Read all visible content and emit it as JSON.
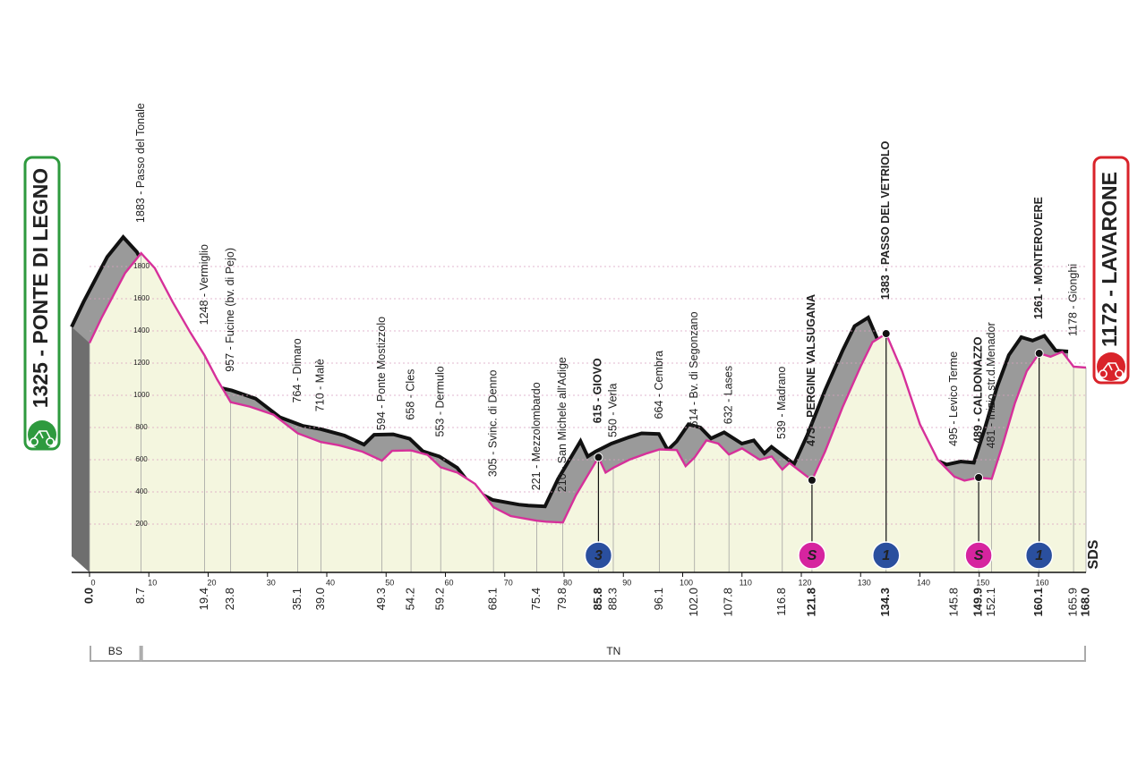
{
  "chart_data": {
    "type": "area",
    "start": "1325 - PONTE DI LEGNO",
    "finish": "1172 - LAVARONE",
    "logo": "SDS",
    "line_color": "#d6309a",
    "fill_color": "#f4f6df",
    "shadow_color": "#9a9a9a",
    "xlim": [
      0,
      168
    ],
    "ylim": [
      -100,
      1900
    ],
    "xticks": [
      0,
      10,
      20,
      30,
      40,
      50,
      60,
      70,
      80,
      90,
      100,
      110,
      120,
      130,
      140,
      150,
      160
    ],
    "yticks": [
      200,
      400,
      600,
      800,
      1000,
      1200,
      1400,
      1600,
      1800
    ],
    "x": [
      0,
      2,
      4,
      6,
      8.7,
      11,
      14,
      17,
      19.4,
      21.5,
      23.8,
      27,
      31,
      35.1,
      39.0,
      42,
      46,
      49.3,
      51,
      54.2,
      57,
      59.2,
      62,
      65,
      68.1,
      71,
      75.4,
      77,
      79.8,
      82,
      85.8,
      87,
      88.3,
      91,
      94,
      96.1,
      99,
      100.5,
      102.0,
      104,
      106,
      107.8,
      110,
      113,
      115,
      116.8,
      118,
      121.8,
      124,
      127,
      130,
      132,
      134.3,
      137,
      140,
      143,
      145.8,
      147.5,
      149.9,
      152.1,
      154,
      156,
      158,
      160.1,
      162,
      164,
      165.9,
      168
    ],
    "values": [
      1325,
      1480,
      1620,
      1760,
      1883,
      1790,
      1580,
      1390,
      1248,
      1100,
      957,
      930,
      880,
      764,
      710,
      690,
      650,
      594,
      655,
      658,
      630,
      553,
      520,
      450,
      305,
      250,
      221,
      215,
      210,
      380,
      615,
      520,
      550,
      600,
      640,
      664,
      660,
      560,
      614,
      720,
      700,
      632,
      670,
      600,
      620,
      539,
      580,
      473,
      650,
      930,
      1180,
      1330,
      1383,
      1150,
      820,
      600,
      495,
      470,
      489,
      481,
      700,
      950,
      1150,
      1261,
      1240,
      1270,
      1178,
      1172
    ],
    "waypoints": [
      {
        "km": {
          "value": 0,
          "label": "0.0"
        },
        "bold": true
      },
      {
        "km": 8.7,
        "name": "1883 - Passo del Tonale",
        "bold": false
      },
      {
        "km": 19.4,
        "name": "1248 - Vermiglio",
        "bold": false
      },
      {
        "km": 23.8,
        "name": "957 - Fucine (bv. di Pejo)",
        "bold": false
      },
      {
        "km": 35.1,
        "name": "764 - Dimaro",
        "bold": false
      },
      {
        "km": {
          "value": 39,
          "label": "39.0"
        },
        "name": "710 - Malè",
        "bold": false
      },
      {
        "km": 49.3,
        "name": "594 - Ponte Mostizzolo",
        "bold": false
      },
      {
        "km": 54.2,
        "name": "658 - Cles",
        "bold": false
      },
      {
        "km": 59.2,
        "name": "553 - Dermulo",
        "bold": false
      },
      {
        "km": 68.1,
        "name": "305 - Svinc. di Denno",
        "bold": false
      },
      {
        "km": 75.4,
        "name": "221 - Mezzolombardo",
        "bold": false
      },
      {
        "km": 79.8,
        "name": "210 - San Michele all'Adige",
        "bold": false
      },
      {
        "km": 85.8,
        "name": "615 - GIOVO",
        "bold": true
      },
      {
        "km": 88.3,
        "name": "550 - Verla",
        "bold": false
      },
      {
        "km": 96.1,
        "name": "664 - Cembra",
        "bold": false
      },
      {
        "km": {
          "value": 102,
          "label": "102.0"
        },
        "name": "614 - Bv. di Segonzano",
        "bold": false
      },
      {
        "km": 107.8,
        "name": "632 - Lases",
        "bold": false
      },
      {
        "km": 116.8,
        "name": "539 - Madrano",
        "bold": false
      },
      {
        "km": 121.8,
        "name": "473 - PERGINE VALSUGANA",
        "bold": true
      },
      {
        "km": 134.3,
        "name": "1383 - PASSO DEL VETRIOLO",
        "bold": true
      },
      {
        "km": 145.8,
        "name": "495 - Levico Terme",
        "bold": false
      },
      {
        "km": 149.9,
        "name": "489 - CALDONAZZO",
        "bold": true
      },
      {
        "km": 152.1,
        "name": "481 - Inizio str.d.Menador",
        "bold": false
      },
      {
        "km": 160.1,
        "name": "1261 - MONTEROVERE",
        "bold": true
      },
      {
        "km": 165.9,
        "name": "1178 - Gionghi",
        "bold": false
      },
      {
        "km": {
          "value": 168,
          "label": "168.0"
        },
        "bold": true
      }
    ],
    "markers": [
      {
        "km": 85.8,
        "kind": "climb",
        "label": "3",
        "color": "#2a4f9e"
      },
      {
        "km": 121.8,
        "kind": "sprint",
        "label": "S",
        "color": "#d6249f"
      },
      {
        "km": 134.3,
        "kind": "climb",
        "label": "1",
        "color": "#2a4f9e"
      },
      {
        "km": 149.9,
        "kind": "sprint",
        "label": "S",
        "color": "#d6249f"
      },
      {
        "km": 160.1,
        "kind": "climb",
        "label": "1",
        "color": "#2a4f9e"
      }
    ],
    "regions": [
      {
        "label": "BS",
        "from": 0,
        "to": 8.7
      },
      {
        "label": "TN",
        "from": 8.7,
        "to": 168
      }
    ]
  }
}
